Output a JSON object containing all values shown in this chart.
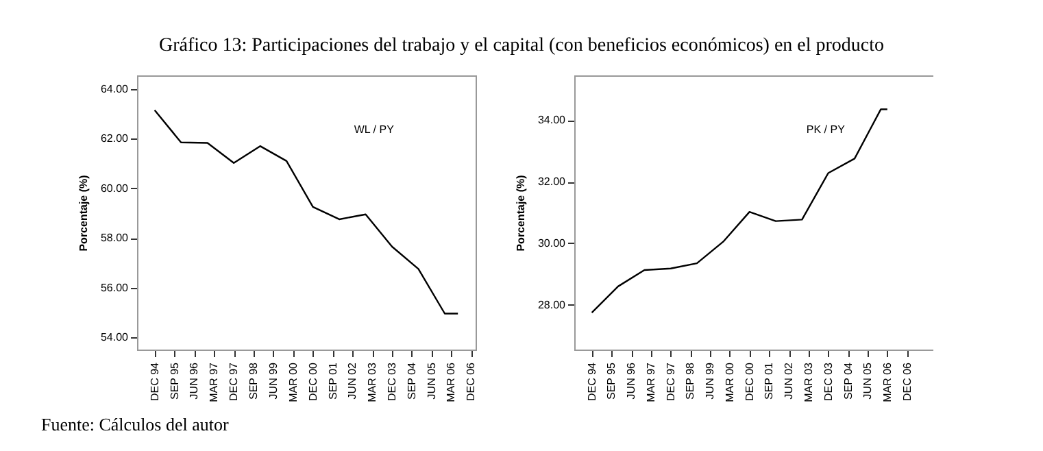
{
  "chart_data": [
    {
      "type": "line",
      "title": "Gráfico 13: Participaciones del trabajo y el capital (con beneficios económicos) en el producto",
      "annotations": [
        "Fuente: Cálculos del autor"
      ],
      "ylabel": "Porcentaje (%)",
      "x": [
        "1994-12",
        "1995-12",
        "1996-12",
        "1997-12",
        "1998-12",
        "1999-12",
        "2000-12",
        "2001-12",
        "2002-12",
        "2003-12",
        "2004-12",
        "2005-12",
        "2006-06"
      ],
      "series": [
        {
          "name": "WL / PY",
          "color": "#000000",
          "values": [
            63.15,
            61.85,
            61.83,
            61.02,
            61.7,
            61.1,
            59.25,
            58.75,
            58.95,
            57.65,
            56.75,
            54.95,
            54.95
          ]
        }
      ],
      "xlim": [
        "1994-04",
        "2007-02"
      ],
      "ylim": [
        53.5,
        64.55
      ],
      "xticks": [
        {
          "value": "1994-12",
          "label": "DEC 94"
        },
        {
          "value": "1995-09",
          "label": "SEP 95"
        },
        {
          "value": "1996-06",
          "label": "JUN 96"
        },
        {
          "value": "1997-03",
          "label": "MAR 97"
        },
        {
          "value": "1997-12",
          "label": "DEC 97"
        },
        {
          "value": "1998-09",
          "label": "SEP 98"
        },
        {
          "value": "1999-06",
          "label": "JUN 99"
        },
        {
          "value": "2000-03",
          "label": "MAR 00"
        },
        {
          "value": "2000-12",
          "label": "DEC 00"
        },
        {
          "value": "2001-09",
          "label": "SEP 01"
        },
        {
          "value": "2002-06",
          "label": "JUN 02"
        },
        {
          "value": "2003-03",
          "label": "MAR 03"
        },
        {
          "value": "2003-12",
          "label": "DEC 03"
        },
        {
          "value": "2004-09",
          "label": "SEP 04"
        },
        {
          "value": "2005-06",
          "label": "JUN 05"
        },
        {
          "value": "2006-03",
          "label": "MAR 06"
        },
        {
          "value": "2006-12",
          "label": "DEC 06"
        }
      ],
      "yticks": [
        {
          "value": 54,
          "label": "54.00"
        },
        {
          "value": 56,
          "label": "56.00"
        },
        {
          "value": 58,
          "label": "58.00"
        },
        {
          "value": 60,
          "label": "60.00"
        },
        {
          "value": 62,
          "label": "62.00"
        },
        {
          "value": 64,
          "label": "64.00"
        }
      ]
    },
    {
      "type": "line",
      "ylabel": "Porcentaje (%)",
      "x": [
        "1994-12",
        "1995-12",
        "1996-12",
        "1997-12",
        "1998-12",
        "1999-12",
        "2000-12",
        "2001-12",
        "2002-12",
        "2003-12",
        "2004-12",
        "2005-12",
        "2006-03"
      ],
      "series": [
        {
          "name": "PK / PY",
          "color": "#000000",
          "values": [
            27.75,
            28.6,
            29.13,
            29.18,
            29.35,
            30.05,
            31.02,
            30.72,
            30.77,
            32.28,
            32.75,
            34.35,
            34.35
          ]
        }
      ],
      "xlim": [
        "1994-04",
        "2007-12"
      ],
      "ylim": [
        26.55,
        35.45
      ],
      "xticks": [
        {
          "value": "1994-12",
          "label": "DEC 94"
        },
        {
          "value": "1995-09",
          "label": "SEP 95"
        },
        {
          "value": "1996-06",
          "label": "JUN 96"
        },
        {
          "value": "1997-03",
          "label": "MAR 97"
        },
        {
          "value": "1997-12",
          "label": "DEC 97"
        },
        {
          "value": "1998-09",
          "label": "SEP 98"
        },
        {
          "value": "1999-06",
          "label": "JUN 99"
        },
        {
          "value": "2000-03",
          "label": "MAR 00"
        },
        {
          "value": "2000-12",
          "label": "DEC 00"
        },
        {
          "value": "2001-09",
          "label": "SEP 01"
        },
        {
          "value": "2002-06",
          "label": "JUN 02"
        },
        {
          "value": "2003-03",
          "label": "MAR 03"
        },
        {
          "value": "2003-12",
          "label": "DEC 03"
        },
        {
          "value": "2004-09",
          "label": "SEP 04"
        },
        {
          "value": "2005-06",
          "label": "JUN 05"
        },
        {
          "value": "2006-03",
          "label": "MAR 06"
        },
        {
          "value": "2006-12",
          "label": "DEC 06"
        }
      ],
      "yticks": [
        {
          "value": 28,
          "label": "28.00"
        },
        {
          "value": 30,
          "label": "30.00"
        },
        {
          "value": 32,
          "label": "32.00"
        },
        {
          "value": 34,
          "label": "34.00"
        }
      ]
    }
  ]
}
